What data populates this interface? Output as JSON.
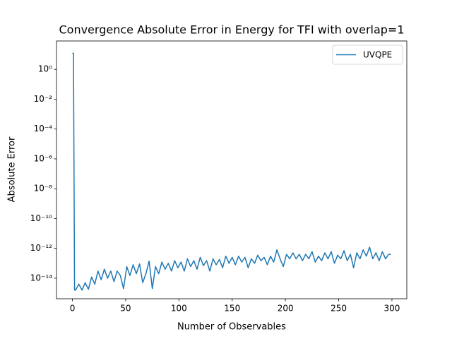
{
  "chart_data": {
    "type": "line",
    "title": "Convergence Absolute Error in Energy for TFI with overlap=1",
    "x_label": "Number of Observables",
    "y_label": "Absolute Error",
    "yscale": "log",
    "legend": "upper right",
    "xlim": [
      -14.95,
      313.95
    ],
    "ylim": [
      4.2e-16,
      80
    ],
    "xticks": [
      0,
      50,
      100,
      150,
      200,
      250,
      300
    ],
    "yticks": [
      {
        "value": 1e-14,
        "label": "10⁻¹⁴"
      },
      {
        "value": 1e-12,
        "label": "10⁻¹²"
      },
      {
        "value": 1e-10,
        "label": "10⁻¹⁰"
      },
      {
        "value": 1e-08,
        "label": "10⁻⁸"
      },
      {
        "value": 1e-06,
        "label": "10⁻⁶"
      },
      {
        "value": 0.0001,
        "label": "10⁻⁴"
      },
      {
        "value": 0.01,
        "label": "10⁻²"
      },
      {
        "value": 1,
        "label": "10⁰"
      }
    ],
    "x": [
      0,
      1,
      2,
      3,
      6,
      9,
      12,
      15,
      18,
      21,
      24,
      27,
      30,
      33,
      36,
      39,
      42,
      45,
      48,
      51,
      54,
      57,
      60,
      63,
      66,
      69,
      72,
      75,
      78,
      81,
      84,
      87,
      90,
      93,
      96,
      99,
      102,
      105,
      108,
      111,
      114,
      117,
      120,
      123,
      126,
      129,
      132,
      135,
      138,
      141,
      144,
      147,
      150,
      153,
      156,
      159,
      162,
      165,
      168,
      171,
      174,
      177,
      180,
      183,
      186,
      189,
      192,
      195,
      198,
      201,
      204,
      207,
      210,
      213,
      216,
      219,
      222,
      225,
      228,
      231,
      234,
      237,
      240,
      243,
      246,
      249,
      252,
      255,
      258,
      261,
      264,
      267,
      270,
      273,
      276,
      279,
      282,
      285,
      288,
      291,
      294,
      297,
      299
    ],
    "series": [
      {
        "name": "UVQPE",
        "color": "#1f77b4",
        "values": [
          12,
          12,
          1.6e-15,
          1.6e-15,
          4e-15,
          1.6e-15,
          5e-15,
          1.8e-15,
          1.2e-14,
          4e-15,
          3e-14,
          8e-15,
          4e-14,
          1e-14,
          3e-14,
          6e-15,
          3e-14,
          1.5e-14,
          2e-15,
          6e-14,
          1.5e-14,
          8e-14,
          2e-14,
          9e-14,
          5e-15,
          2e-14,
          1.4e-13,
          2e-15,
          6e-14,
          2e-14,
          1.2e-13,
          4e-14,
          1e-13,
          3e-14,
          1.5e-13,
          5e-14,
          1.2e-13,
          3e-14,
          2e-13,
          6e-14,
          1.5e-13,
          4e-14,
          2.5e-13,
          7e-14,
          1.5e-13,
          3e-14,
          2e-13,
          8e-14,
          1.8e-13,
          5e-14,
          3e-13,
          1e-13,
          2.5e-13,
          8e-14,
          3e-13,
          1.2e-13,
          2.5e-13,
          5e-14,
          2e-13,
          1e-13,
          3.5e-13,
          1.5e-13,
          2.5e-13,
          8e-14,
          3e-13,
          1.2e-13,
          8e-13,
          2e-13,
          6e-14,
          4e-13,
          2e-13,
          5e-13,
          2e-13,
          4e-13,
          1.5e-13,
          4e-13,
          2e-13,
          6e-13,
          1.2e-13,
          3e-13,
          1.5e-13,
          5e-13,
          2e-13,
          6e-13,
          1e-13,
          3.5e-13,
          2e-13,
          7e-13,
          1.5e-13,
          4e-13,
          5e-14,
          5e-13,
          2e-13,
          8e-13,
          3e-13,
          1.2e-12,
          2e-13,
          5e-13,
          1.5e-13,
          6e-13,
          2e-13,
          4e-13,
          4e-13
        ]
      }
    ]
  }
}
